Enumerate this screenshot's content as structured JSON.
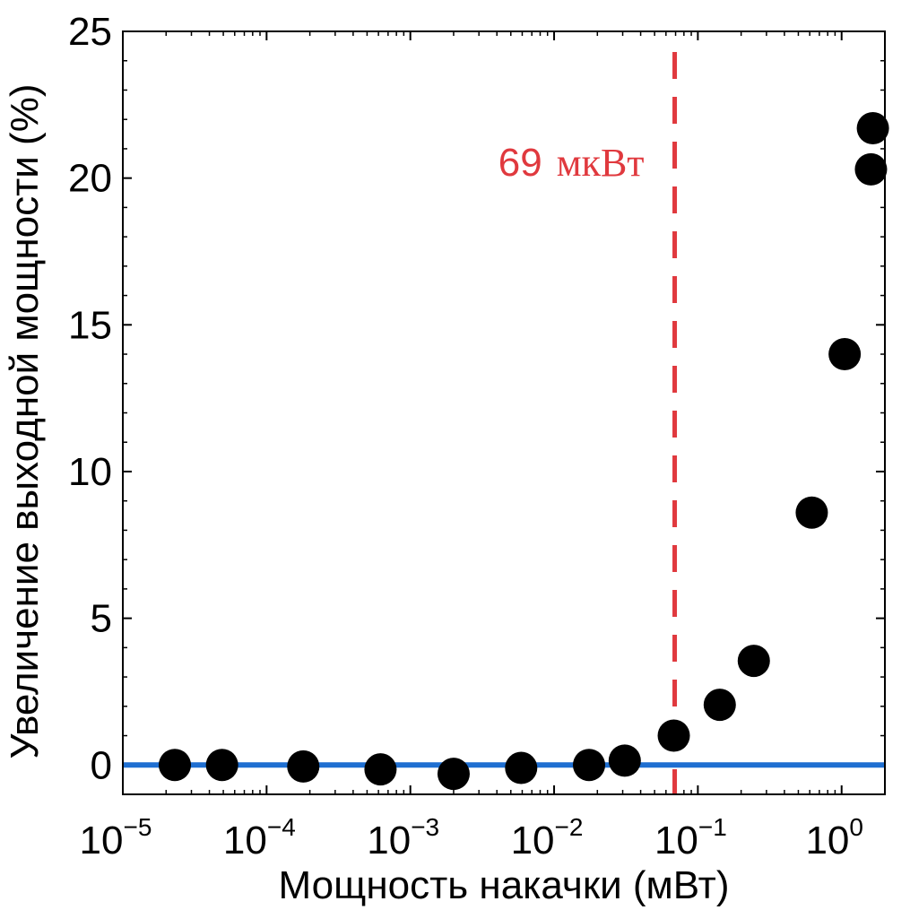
{
  "chart_data": {
    "type": "scatter",
    "xscale": "log",
    "xlim": [
      1e-05,
      2
    ],
    "ylim": [
      -1,
      25
    ],
    "xlabel": "Мощность накачки (мВт)",
    "ylabel": "Увеличение выходной мощности (%)",
    "yticks": [
      "0",
      "5",
      "10",
      "15",
      "20",
      "25"
    ],
    "xticks": [
      {
        "base": "10",
        "exp": "−5"
      },
      {
        "base": "10",
        "exp": "−4"
      },
      {
        "base": "10",
        "exp": "−3"
      },
      {
        "base": "10",
        "exp": "−2"
      },
      {
        "base": "10",
        "exp": "−1"
      },
      {
        "base": "10",
        "exp": "0"
      }
    ],
    "points": [
      {
        "x": 2.3e-05,
        "y": 0.0
      },
      {
        "x": 4.9e-05,
        "y": 0.0
      },
      {
        "x": 0.00018,
        "y": -0.05
      },
      {
        "x": 0.00062,
        "y": -0.15
      },
      {
        "x": 0.002,
        "y": -0.3
      },
      {
        "x": 0.0059,
        "y": -0.1
      },
      {
        "x": 0.0175,
        "y": 0.0
      },
      {
        "x": 0.031,
        "y": 0.15
      },
      {
        "x": 0.068,
        "y": 1.0
      },
      {
        "x": 0.142,
        "y": 2.05
      },
      {
        "x": 0.245,
        "y": 3.55
      },
      {
        "x": 0.62,
        "y": 8.6
      },
      {
        "x": 1.05,
        "y": 14.0
      },
      {
        "x": 1.6,
        "y": 20.3
      },
      {
        "x": 1.65,
        "y": 21.7
      }
    ],
    "baseline": {
      "y": 0,
      "color": "#1f6fd1"
    },
    "threshold": {
      "x": 0.069,
      "color": "#e0393e",
      "label_value": "69",
      "label_unit": "мкВт"
    },
    "marker_color": "#000000",
    "grid": false
  }
}
